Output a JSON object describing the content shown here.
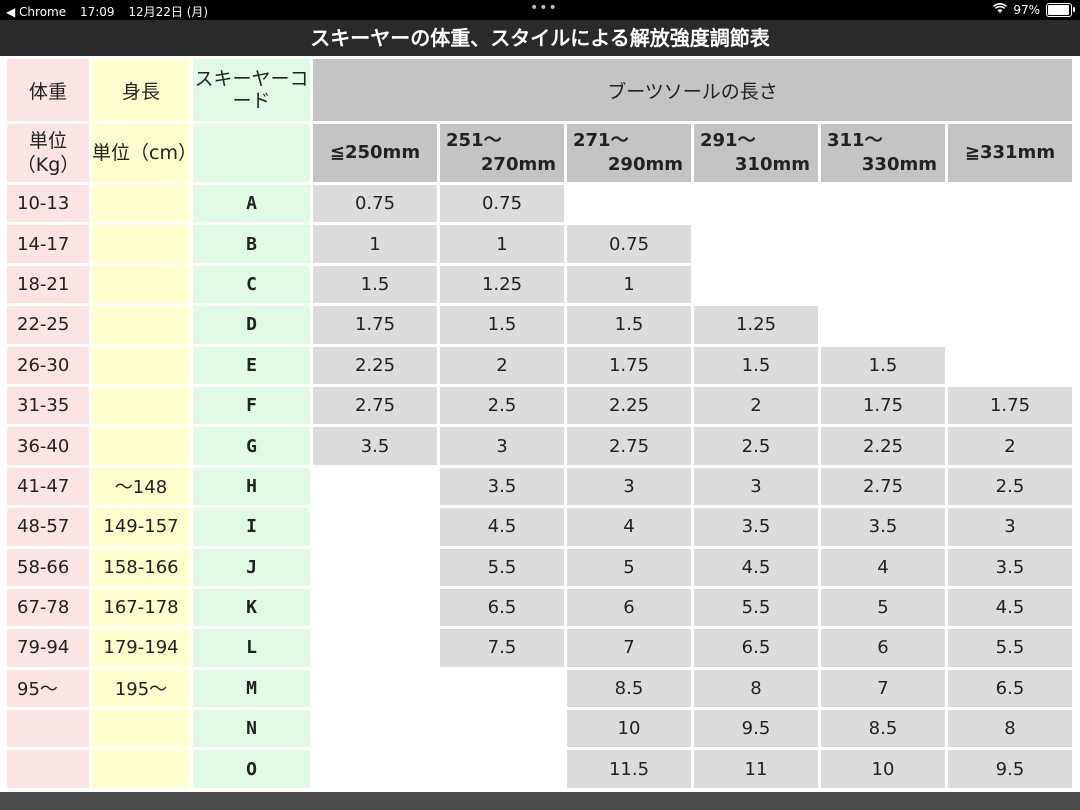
{
  "status_bar": {
    "back_app": "◀ Chrome",
    "time": "17:09",
    "date": "12月22日 (月)",
    "dots": "•••",
    "wifi": "WiFi",
    "battery": "97%",
    "battery_level": 0.97
  },
  "title": "スキーヤーの体重、スタイルによる解放強度調節表",
  "header": {
    "weight": "体重",
    "height": "身長",
    "code": "スキーヤーコード",
    "boot_sole": "ブーツソールの長さ",
    "weight_unit": "単位（Kg）",
    "height_unit": "単位（cm）",
    "sizes": [
      [
        "≦250mm",
        ""
      ],
      [
        "251～",
        "270mm"
      ],
      [
        "271～",
        "290mm"
      ],
      [
        "291～",
        "310mm"
      ],
      [
        "311～",
        "330mm"
      ],
      [
        "≧331mm",
        ""
      ]
    ]
  },
  "rows": [
    {
      "weight": "10-13",
      "height": "",
      "code": "A",
      "vals": [
        "0.75",
        "0.75",
        "",
        "",
        "",
        ""
      ]
    },
    {
      "weight": "14-17",
      "height": "",
      "code": "B",
      "vals": [
        "1",
        "1",
        "0.75",
        "",
        "",
        ""
      ]
    },
    {
      "weight": "18-21",
      "height": "",
      "code": "C",
      "vals": [
        "1.5",
        "1.25",
        "1",
        "",
        "",
        ""
      ]
    },
    {
      "weight": "22-25",
      "height": "",
      "code": "D",
      "vals": [
        "1.75",
        "1.5",
        "1.5",
        "1.25",
        "",
        ""
      ]
    },
    {
      "weight": "26-30",
      "height": "",
      "code": "E",
      "vals": [
        "2.25",
        "2",
        "1.75",
        "1.5",
        "1.5",
        ""
      ]
    },
    {
      "weight": "31-35",
      "height": "",
      "code": "F",
      "vals": [
        "2.75",
        "2.5",
        "2.25",
        "2",
        "1.75",
        "1.75"
      ]
    },
    {
      "weight": "36-40",
      "height": "",
      "code": "G",
      "vals": [
        "3.5",
        "3",
        "2.75",
        "2.5",
        "2.25",
        "2"
      ]
    },
    {
      "weight": "41-47",
      "height": "～148",
      "code": "H",
      "vals": [
        "",
        "3.5",
        "3",
        "3",
        "2.75",
        "2.5"
      ]
    },
    {
      "weight": "48-57",
      "height": "149-157",
      "code": "I",
      "vals": [
        "",
        "4.5",
        "4",
        "3.5",
        "3.5",
        "3"
      ]
    },
    {
      "weight": "58-66",
      "height": "158-166",
      "code": "J",
      "vals": [
        "",
        "5.5",
        "5",
        "4.5",
        "4",
        "3.5"
      ]
    },
    {
      "weight": "67-78",
      "height": "167-178",
      "code": "K",
      "vals": [
        "",
        "6.5",
        "6",
        "5.5",
        "5",
        "4.5"
      ]
    },
    {
      "weight": "79-94",
      "height": "179-194",
      "code": "L",
      "vals": [
        "",
        "7.5",
        "7",
        "6.5",
        "6",
        "5.5"
      ]
    },
    {
      "weight": "95～",
      "height": "195～",
      "code": "M",
      "vals": [
        "",
        "",
        "8.5",
        "8",
        "7",
        "6.5"
      ]
    },
    {
      "weight": "",
      "height": "",
      "code": "N",
      "vals": [
        "",
        "",
        "10",
        "9.5",
        "8.5",
        "8"
      ]
    },
    {
      "weight": "",
      "height": "",
      "code": "O",
      "vals": [
        "",
        "",
        "11.5",
        "11",
        "10",
        "9.5"
      ]
    }
  ]
}
